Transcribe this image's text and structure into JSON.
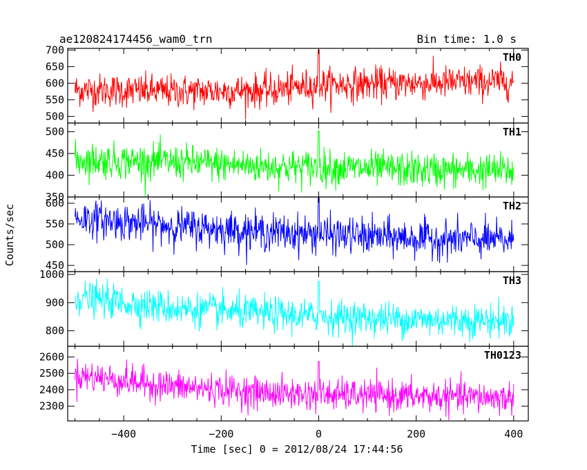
{
  "header": {
    "title": "ae120824174456_wam0_trn",
    "bin_time": "Bin time: 1.0 s"
  },
  "chart_data": {
    "type": "line",
    "title": "ae120824174456_wam0_trn",
    "xlabel": "Time [sec] 0 = 2012/08/24 17:44:56",
    "ylabel": "Counts/sec",
    "xlim": [
      -515,
      430
    ],
    "x_ticks": [
      -400,
      -200,
      0,
      200,
      400
    ],
    "x_tick_labels": [
      "−400",
      "−200",
      "0",
      "200",
      "400"
    ],
    "x_start": -500,
    "x_end": 400,
    "step": 1,
    "panels": [
      {
        "name": "TH0",
        "color": "#ff0000",
        "ylim": [
          480,
          705
        ],
        "y_ticks": [
          500,
          550,
          600,
          650,
          700
        ],
        "y_tick_labels": [
          "500",
          "550",
          "600",
          "650",
          "700"
        ],
        "trend_x": [
          -500,
          -300,
          -100,
          0,
          200,
          400
        ],
        "trend_y": [
          580,
          575,
          578,
          595,
          600,
          605
        ],
        "sigma": 25
      },
      {
        "name": "TH1",
        "color": "#00ff00",
        "ylim": [
          350,
          520
        ],
        "y_ticks": [
          350,
          400,
          450,
          500
        ],
        "y_tick_labels": [
          "350",
          "400",
          "450",
          "500"
        ],
        "trend_x": [
          -500,
          -300,
          -100,
          0,
          200,
          400
        ],
        "trend_y": [
          435,
          430,
          420,
          418,
          412,
          410
        ],
        "sigma": 20
      },
      {
        "name": "TH2",
        "color": "#0000ff",
        "ylim": [
          435,
          615
        ],
        "y_ticks": [
          450,
          500,
          550,
          600
        ],
        "y_tick_labels": [
          "450",
          "500",
          "550",
          "600"
        ],
        "trend_x": [
          -500,
          -300,
          -100,
          0,
          200,
          400
        ],
        "trend_y": [
          565,
          545,
          530,
          525,
          515,
          510
        ],
        "sigma": 22
      },
      {
        "name": "TH3",
        "color": "#00ffff",
        "ylim": [
          745,
          1010
        ],
        "y_ticks": [
          800,
          900,
          1000
        ],
        "y_tick_labels": [
          "800",
          "900",
          "1000"
        ],
        "trend_x": [
          -500,
          -300,
          -100,
          0,
          200,
          400
        ],
        "trend_y": [
          920,
          880,
          860,
          850,
          840,
          835
        ],
        "sigma": 30
      },
      {
        "name": "TH0123",
        "color": "#ff00ff",
        "ylim": [
          2210,
          2665
        ],
        "y_ticks": [
          2300,
          2400,
          2500,
          2600
        ],
        "y_tick_labels": [
          "2300",
          "2400",
          "2500",
          "2600"
        ],
        "trend_x": [
          -500,
          -300,
          -100,
          0,
          200,
          400
        ],
        "trend_y": [
          2490,
          2420,
          2380,
          2370,
          2360,
          2350
        ],
        "sigma": 48
      }
    ]
  }
}
